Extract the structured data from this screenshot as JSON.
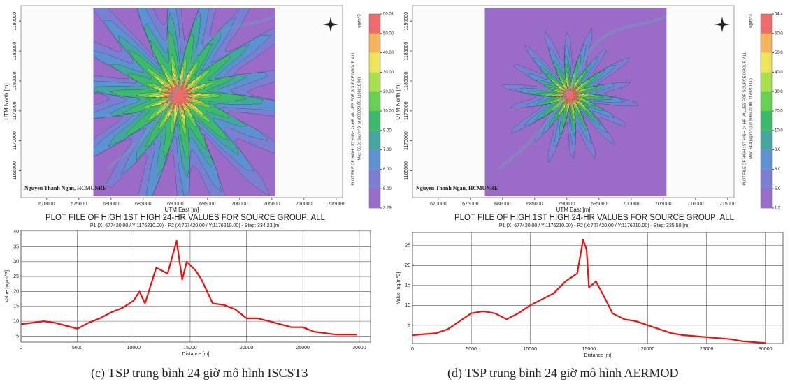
{
  "chart_data": [
    {
      "type": "contour",
      "title": "PLOT FILE OF HIGH 1ST HIGH 24-HR VALUES FOR SOURCE GROUP: ALL",
      "subtitle": "Max: 50.01 [ug/m^3] at (689920.00, 1180210.00)",
      "unit": "ug/m^3",
      "x_label": "UTM East [m]",
      "y_label": "UTM North [m]",
      "annotation": "Nguyen Thanh Ngan, HCMUNRE",
      "xlim": [
        666000,
        716000
      ],
      "ylim": [
        1160500,
        1192600
      ],
      "xticks": [
        670000,
        675000,
        680000,
        685000,
        690000,
        695000,
        700000,
        705000,
        710000,
        715000
      ],
      "yticks": [
        1165000,
        1170000,
        1175000,
        1180000,
        1185000,
        1190000
      ],
      "colorbar": {
        "ticks": [
          3.29,
          {
            "value": 5,
            "label": "5.00"
          },
          {
            "value": 6,
            "label": "6.00"
          },
          {
            "value": 7,
            "label": "7.00"
          },
          {
            "value": 9,
            "label": "9.00"
          },
          {
            "value": 10,
            "label": "10.00"
          },
          {
            "value": 20,
            "label": "20.00"
          },
          {
            "value": 30,
            "label": "30.00"
          },
          {
            "value": 40,
            "label": "40.00"
          },
          {
            "value": 50,
            "label": "50.00"
          },
          50.01
        ],
        "colors": [
          "#9a6cc8",
          "#7a7fd4",
          "#5d92d2",
          "#44a6a0",
          "#3cba6c",
          "#66d152",
          "#a8e04e",
          "#eee45a",
          "#f4b45a",
          "#ef6a6a"
        ]
      }
    },
    {
      "type": "contour",
      "title": "PLOT FILE OF HIGH 1ST HIGH 24-HR VALUES FOR SOURCE GROUP: ALL",
      "subtitle": "Max: 64.4 [ug/m^3] at (690420.00, 1179210.00)",
      "unit": "ug/m^3",
      "x_label": "UTM East [m]",
      "y_label": "UTM North [m]",
      "annotation": "Nguyen Thanh Ngan, HCMUNRE",
      "xlim": [
        666000,
        716000
      ],
      "ylim": [
        1160500,
        1192600
      ],
      "xticks": [
        670000,
        675000,
        680000,
        685000,
        690000,
        695000,
        700000,
        705000,
        710000,
        715000
      ],
      "yticks": [
        1165000,
        1170000,
        1175000,
        1180000,
        1185000,
        1190000
      ],
      "colorbar": {
        "ticks": [
          1.5,
          {
            "value": 5,
            "label": "5.0"
          },
          {
            "value": 6,
            "label": "6.0"
          },
          {
            "value": 8,
            "label": "8.0"
          },
          {
            "value": 10,
            "label": "10.0"
          },
          {
            "value": 20,
            "label": "20.0"
          },
          {
            "value": 30,
            "label": "30.0"
          },
          {
            "value": 40,
            "label": "40.0"
          },
          {
            "value": 50,
            "label": "50.0"
          },
          {
            "value": 60,
            "label": "60.0"
          },
          64.4
        ],
        "colors": [
          "#9a6cc8",
          "#7a7fd4",
          "#5d92d2",
          "#44a6a0",
          "#3cba6c",
          "#66d152",
          "#a8e04e",
          "#eee45a",
          "#f4b45a",
          "#ef6a6a"
        ]
      }
    },
    {
      "type": "line",
      "title": "PLOT FILE OF HIGH 1ST HIGH 24-HR VALUES FOR SOURCE GROUP: ALL",
      "subtitle": "P1 (X: 677420.00 / Y:1176210.00) - P2 (X:707420.00 / Y:1176210.00) - Step: 334.23 [m]",
      "x_label": "Distance [m]",
      "y_label": "Value [ug/m^3]",
      "caption": "(c) TSP trung bình 24 giờ mô hình ISCST3",
      "x": [
        0,
        1000,
        2000,
        3000,
        4000,
        5000,
        6000,
        7000,
        8000,
        9000,
        10000,
        10500,
        11000,
        12000,
        13000,
        13800,
        14300,
        14700,
        15500,
        16000,
        17000,
        18000,
        19000,
        20000,
        21000,
        22000,
        23000,
        24000,
        25000,
        26000,
        27000,
        28000,
        29000,
        29800
      ],
      "series": [
        {
          "color": "#ee1111",
          "values": [
            9,
            9.5,
            10,
            9.5,
            8.5,
            7.5,
            9.5,
            11,
            13,
            14.5,
            17,
            20,
            16,
            28,
            26,
            37,
            24,
            30,
            27,
            24,
            16,
            15.5,
            14,
            11,
            11,
            10,
            9,
            8,
            8,
            6.5,
            6,
            5.5,
            5.5,
            5.5
          ]
        }
      ],
      "xlim": [
        0,
        31000
      ],
      "ylim": [
        3,
        40.5
      ],
      "xticks": [
        0,
        5000,
        10000,
        15000,
        20000,
        25000,
        30000
      ],
      "yticks": [
        5,
        10,
        15,
        20,
        25,
        30,
        35,
        40
      ],
      "grid": true
    },
    {
      "type": "line",
      "title": "PLOT FILE OF HIGH 1ST HIGH 24-HR VALUES FOR SOURCE GROUP: ALL",
      "subtitle": "P1 (X: 677420.00 / Y:1176210.00) - P2 (X:707420.00 / Y:1176210.00) - Step: 325.50 [m]",
      "x_label": "Distance [m]",
      "y_label": "Value [ug/m^3]",
      "caption": "(d) TSP trung bình 24 giờ mô hình AERMOD",
      "x": [
        0,
        2000,
        3000,
        4000,
        5000,
        6000,
        7000,
        8000,
        9000,
        10000,
        11000,
        12000,
        13000,
        14000,
        14500,
        14800,
        15000,
        15600,
        16500,
        17000,
        18000,
        19000,
        20000,
        21000,
        22000,
        23000,
        25000,
        27000,
        28000,
        30000
      ],
      "series": [
        {
          "color": "#ee1111",
          "values": [
            2.5,
            3,
            4,
            6,
            8,
            8.5,
            8,
            6.5,
            8,
            10,
            11.5,
            13,
            16,
            18,
            26.5,
            24,
            14.5,
            16,
            11,
            8,
            6.5,
            6,
            5,
            4,
            3,
            2.5,
            2,
            1.5,
            1,
            0.5
          ]
        }
      ],
      "xlim": [
        0,
        31500
      ],
      "ylim": [
        0.4,
        28.3
      ],
      "xticks": [
        0,
        5000,
        10000,
        15000,
        20000,
        25000,
        30000
      ],
      "yticks": [
        5,
        10,
        15,
        20,
        25
      ],
      "grid": true
    }
  ]
}
